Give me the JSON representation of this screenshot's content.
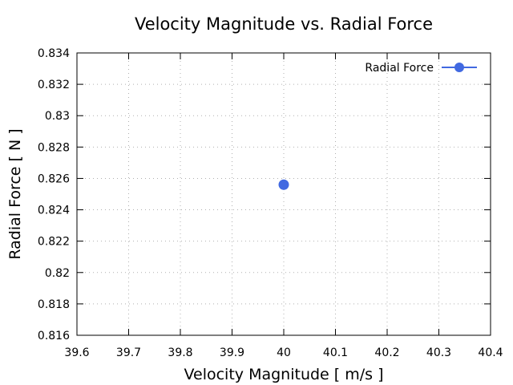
{
  "chart_data": {
    "type": "scatter",
    "title": "Velocity Magnitude vs. Radial Force",
    "xlabel": "Velocity Magnitude [ m/s ]",
    "ylabel": "Radial Force [ N ]",
    "xlim": [
      39.6,
      40.4
    ],
    "ylim": [
      0.816,
      0.834
    ],
    "xticks": [
      "39.6",
      "39.7",
      "39.8",
      "39.9",
      "40",
      "40.1",
      "40.2",
      "40.3",
      "40.4"
    ],
    "yticks": [
      "0.816",
      "0.818",
      "0.82",
      "0.822",
      "0.824",
      "0.826",
      "0.828",
      "0.83",
      "0.832",
      "0.834"
    ],
    "grid": true,
    "legend_position": "top-right",
    "series": [
      {
        "name": "Radial Force",
        "color": "#4169e1",
        "points": [
          {
            "x": 40,
            "y": 0.8256
          }
        ]
      }
    ]
  }
}
